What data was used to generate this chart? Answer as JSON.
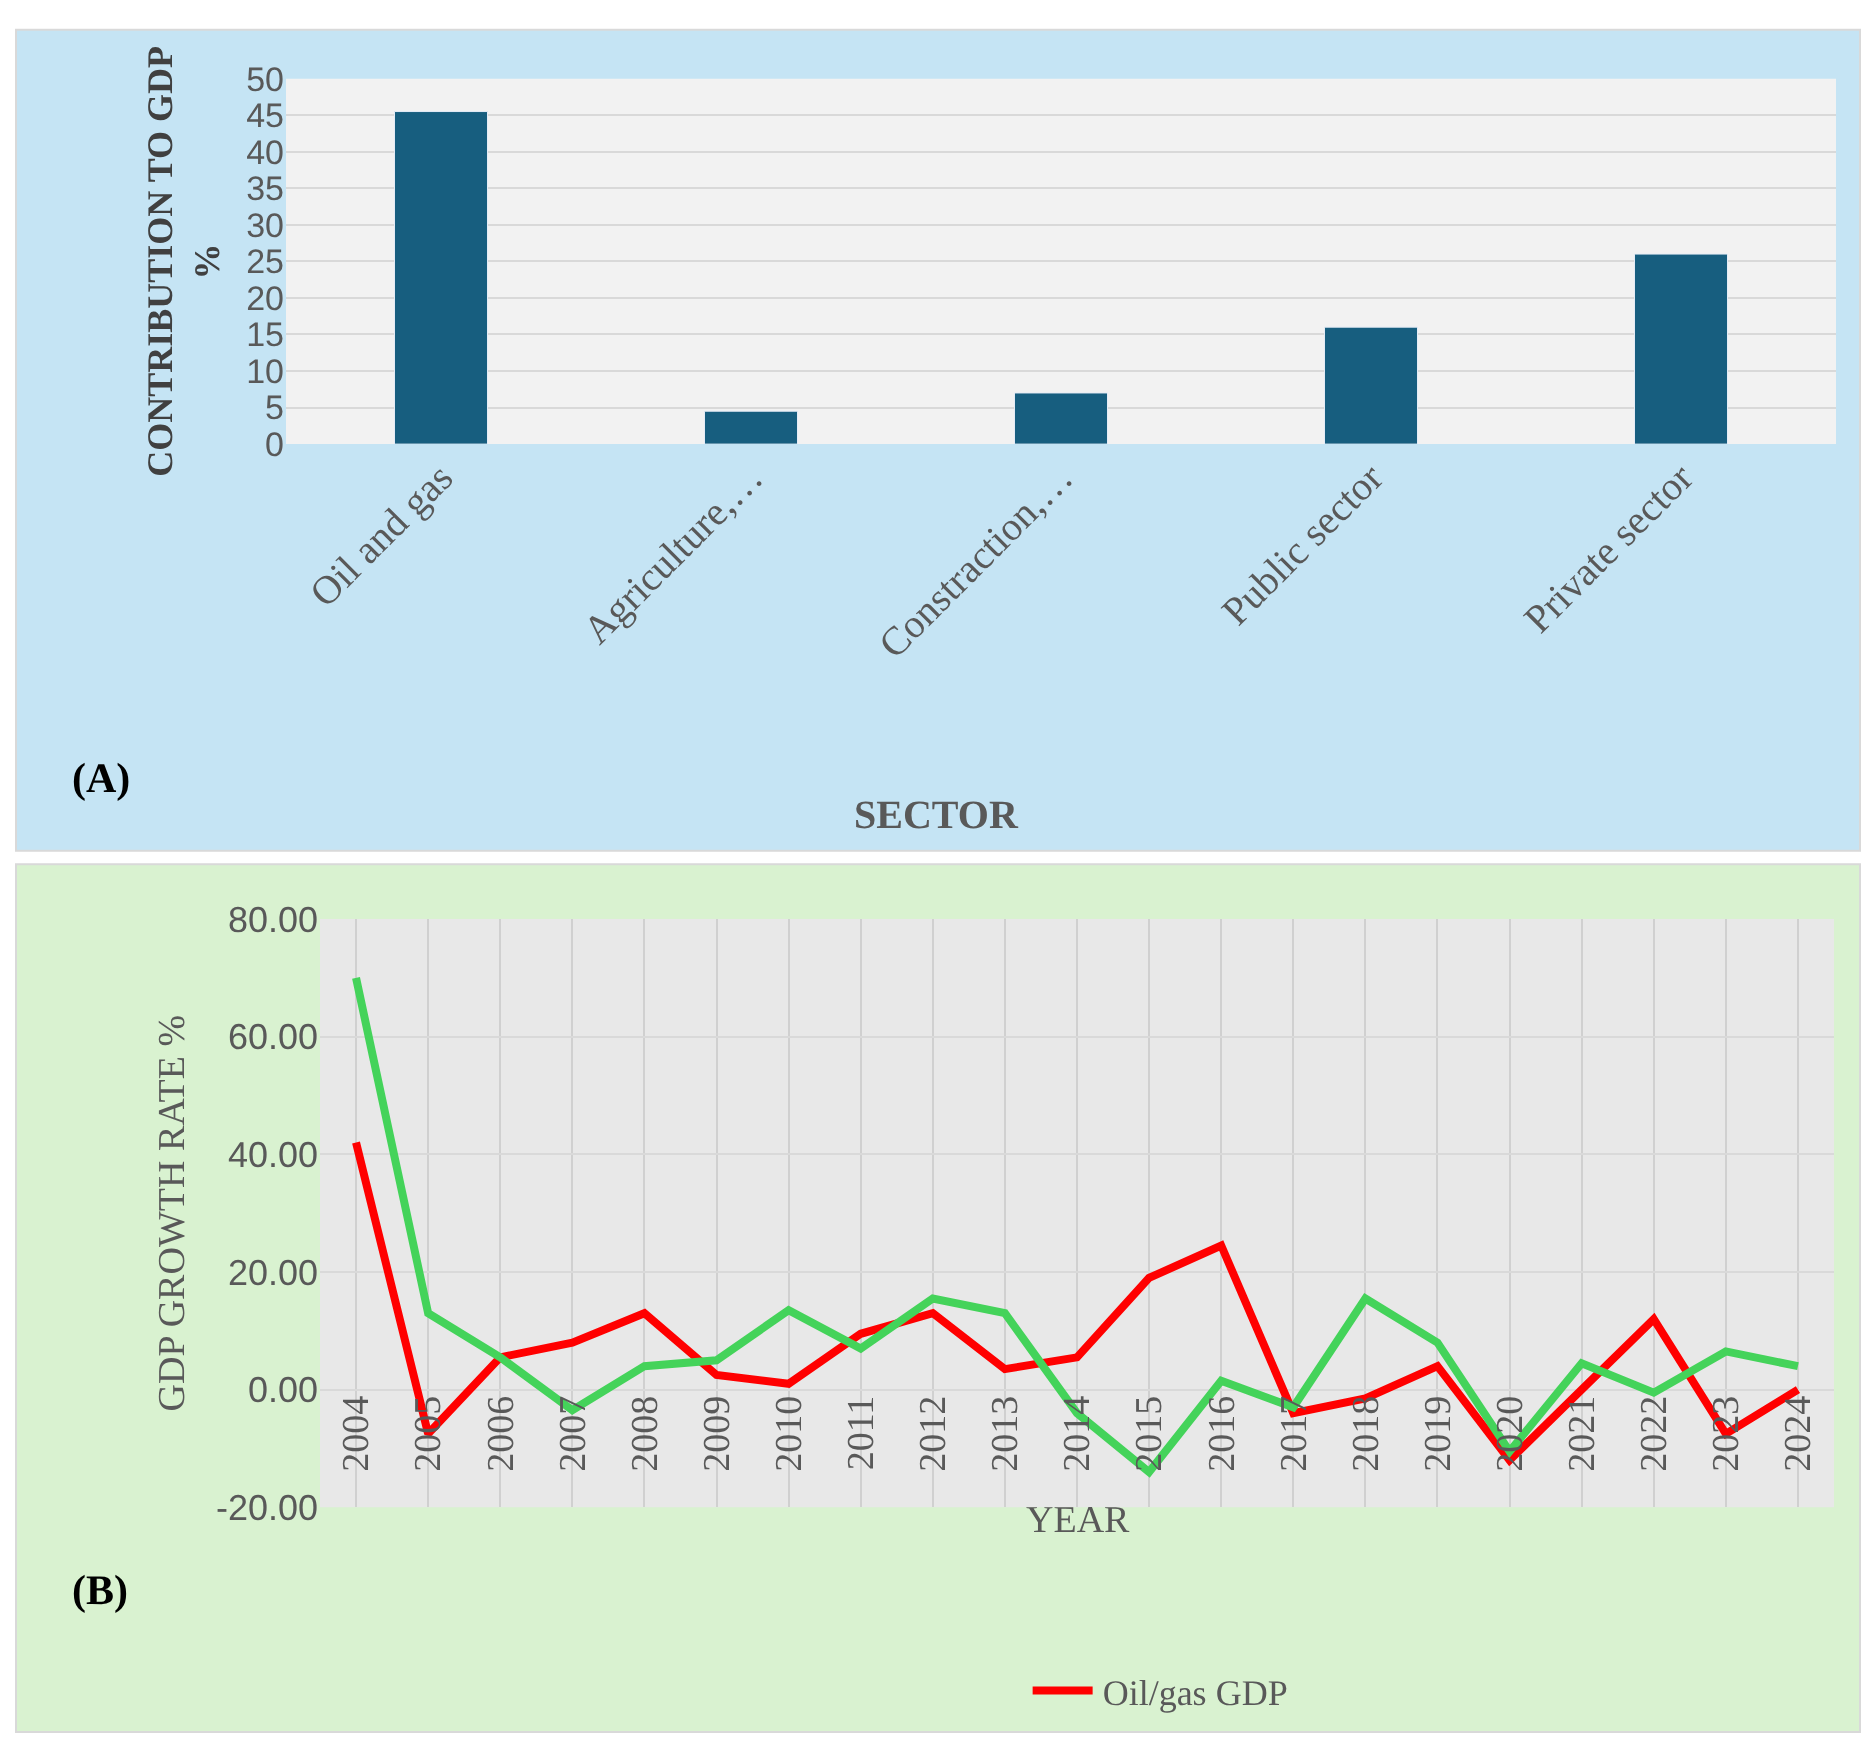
{
  "chart_data": [
    {
      "type": "bar",
      "categories": [
        "Oil and gas",
        "Agriculture,…",
        "Constraction,…",
        "Public sector",
        "Private sector"
      ],
      "values": [
        45.5,
        4.5,
        7,
        16,
        26
      ],
      "color": "#175e7f",
      "ylim": [
        0,
        50
      ],
      "yticks": [
        0,
        5,
        10,
        15,
        20,
        25,
        30,
        35,
        40,
        45,
        50
      ],
      "grid": "y",
      "xlabel": "SECTOR",
      "ylabel": "CONTRIBUTION TO GDP %",
      "annotations": [
        "(A)"
      ]
    },
    {
      "type": "line",
      "categories": [
        "2004",
        "2005",
        "2006",
        "2007",
        "2008",
        "2009",
        "2010",
        "2011",
        "2012",
        "2013",
        "2014",
        "2015",
        "2016",
        "2017",
        "2018",
        "2019",
        "2020",
        "2021",
        "2022",
        "2023",
        "2024"
      ],
      "series": [
        {
          "name": "Oil/gas GDP",
          "color": "#ff0000",
          "values": [
            42,
            -7.5,
            5.5,
            8,
            13,
            2.5,
            1,
            9.5,
            13,
            3.5,
            5.5,
            19,
            24.5,
            -4,
            -1.5,
            4,
            -12,
            0,
            12,
            -7.5,
            0
          ]
        },
        {
          "color": "#44d35a",
          "values": [
            70,
            13,
            5.5,
            -3.5,
            4,
            5,
            13.5,
            7,
            15.5,
            13,
            -4,
            -14,
            1.5,
            -3,
            15.5,
            8,
            -10.5,
            4.5,
            -0.5,
            6.5,
            4
          ]
        }
      ],
      "ylim": [
        -20,
        80
      ],
      "yticks": [
        {
          "value": -20,
          "label": "-20.00"
        },
        {
          "value": 0,
          "label": "0.00"
        },
        {
          "value": 20,
          "label": "20.00"
        },
        {
          "value": 40,
          "label": "40.00"
        },
        {
          "value": 60,
          "label": "60.00"
        },
        {
          "value": 80,
          "label": "80.00"
        }
      ],
      "grid": true,
      "legend": "bottom",
      "xlabel": "YEAR",
      "ylabel": "GDP GROWTH RATE %",
      "annotations": [
        "(B)"
      ]
    }
  ]
}
